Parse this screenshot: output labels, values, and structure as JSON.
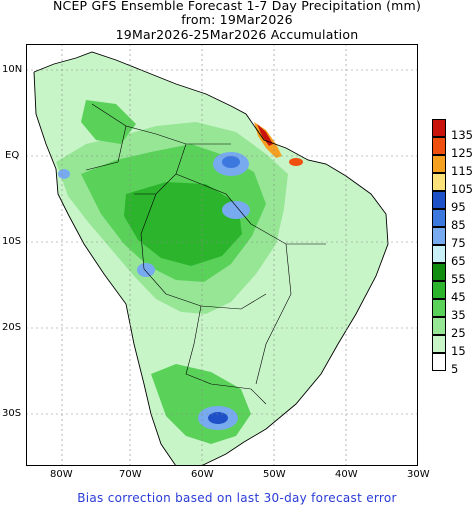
{
  "title": {
    "line1": "NCEP GFS Ensemble Forecast 1-7 Day Precipitation (mm)",
    "line2": "from: 19Mar2026",
    "line3": "19Mar2026-25Mar2026 Accumulation"
  },
  "footer": "Bias correction based on last 30-day forecast error",
  "axes": {
    "lat_labels": [
      "10N",
      "EQ",
      "10S",
      "20S",
      "30S"
    ],
    "lon_labels": [
      "80W",
      "70W",
      "60W",
      "50W",
      "40W",
      "30W"
    ]
  },
  "legend": [
    {
      "label": "135",
      "color": "#c8140c"
    },
    {
      "label": "125",
      "color": "#f0500f"
    },
    {
      "label": "115",
      "color": "#f6a020"
    },
    {
      "label": "105",
      "color": "#fbe27a"
    },
    {
      "label": "95",
      "color": "#1e50c8"
    },
    {
      "label": "85",
      "color": "#3c78de"
    },
    {
      "label": "75",
      "color": "#78aaf0"
    },
    {
      "label": "65",
      "color": "#c8f0f6"
    },
    {
      "label": "55",
      "color": "#108c10"
    },
    {
      "label": "45",
      "color": "#2db42d"
    },
    {
      "label": "35",
      "color": "#5ad25a"
    },
    {
      "label": "25",
      "color": "#96e696"
    },
    {
      "label": "15",
      "color": "#c8f5c8"
    },
    {
      "label": "5",
      "color": "#ffffff"
    }
  ]
}
